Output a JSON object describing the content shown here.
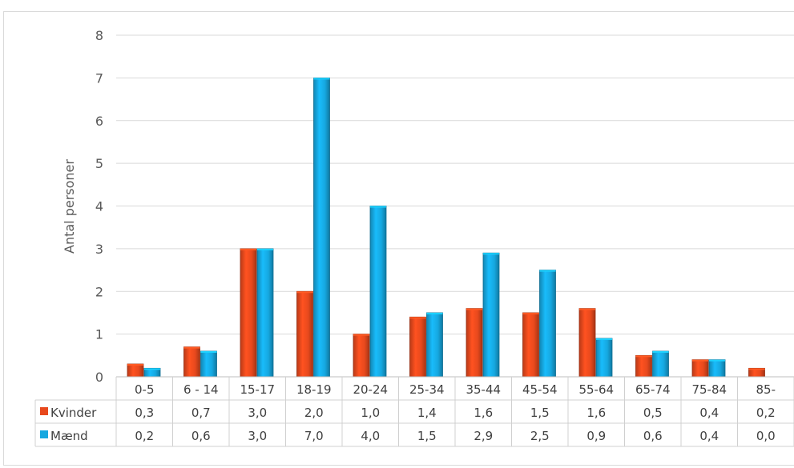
{
  "chart_data": {
    "type": "bar",
    "ylabel": "Antal personer",
    "ylim": [
      0,
      8
    ],
    "yticks": [
      "0",
      "1",
      "2",
      "3",
      "4",
      "5",
      "6",
      "7",
      "8"
    ],
    "grid": true,
    "categories": [
      "0-5",
      "6 - 14",
      "15-17",
      "18-19",
      "20-24",
      "25-34",
      "35-44",
      "45-54",
      "55-64",
      "65-74",
      "75-84",
      "85-"
    ],
    "series": [
      {
        "name": "Kvinder",
        "color": "#e8491d",
        "values": [
          0.3,
          0.7,
          3.0,
          2.0,
          1.0,
          1.4,
          1.6,
          1.5,
          1.6,
          0.5,
          0.4,
          0.2
        ],
        "labels": [
          "0,3",
          "0,7",
          "3,0",
          "2,0",
          "1,0",
          "1,4",
          "1,6",
          "1,5",
          "1,6",
          "0,5",
          "0,4",
          "0,2"
        ]
      },
      {
        "name": "Mænd",
        "color": "#16a8e0",
        "values": [
          0.2,
          0.6,
          3.0,
          7.0,
          4.0,
          1.5,
          2.9,
          2.5,
          0.9,
          0.6,
          0.4,
          0.0
        ],
        "labels": [
          "0,2",
          "0,6",
          "3,0",
          "7,0",
          "4,0",
          "1,5",
          "2,9",
          "2,5",
          "0,9",
          "0,6",
          "0,4",
          "0,0"
        ]
      }
    ]
  }
}
